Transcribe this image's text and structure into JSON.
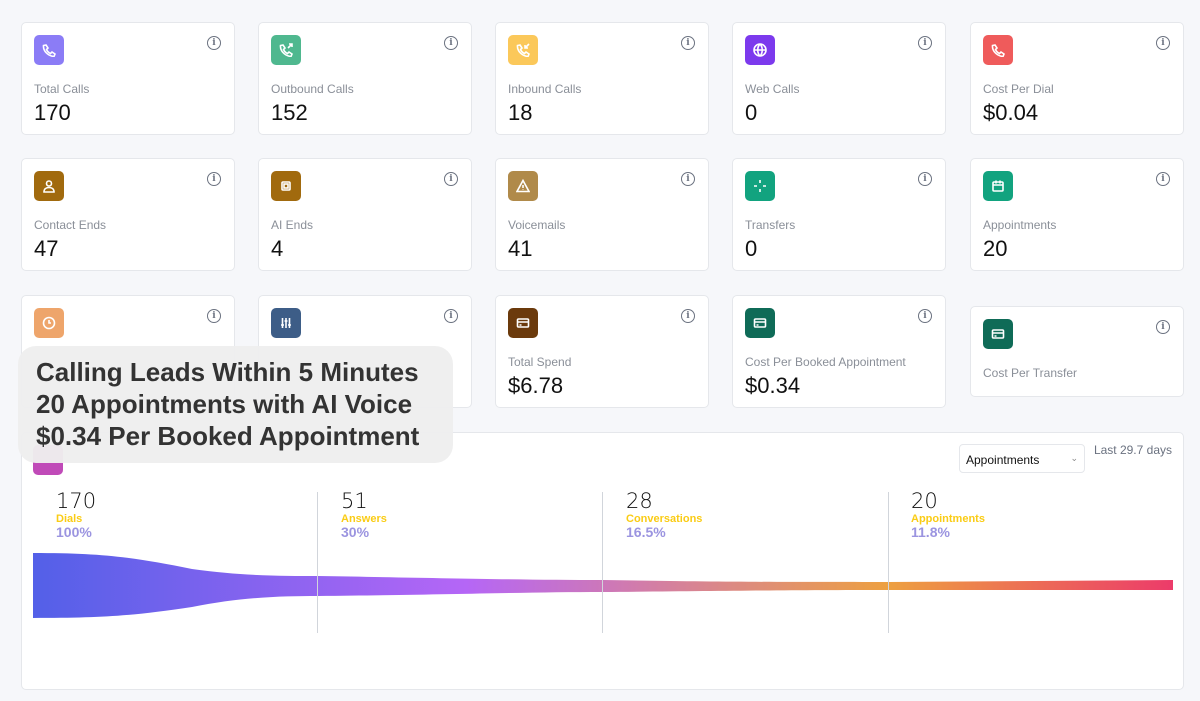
{
  "cards": [
    {
      "label": "Total Calls",
      "value": "170",
      "icon": "phone-icon",
      "color": "#8b7cf6"
    },
    {
      "label": "Outbound Calls",
      "value": "152",
      "icon": "phone-outgoing-icon",
      "color": "#4fb88f"
    },
    {
      "label": "Inbound Calls",
      "value": "18",
      "icon": "phone-incoming-icon",
      "color": "#fbc85a"
    },
    {
      "label": "Web Calls",
      "value": "0",
      "icon": "globe-icon",
      "color": "#7c3aed"
    },
    {
      "label": "Cost Per Dial",
      "value": "$0.04",
      "icon": "phone-icon",
      "color": "#ef5b5b"
    },
    {
      "label": "Contact Ends",
      "value": "47",
      "icon": "user-icon",
      "color": "#a16a0e"
    },
    {
      "label": "AI Ends",
      "value": "4",
      "icon": "chip-icon",
      "color": "#a16a0e"
    },
    {
      "label": "Voicemails",
      "value": "41",
      "icon": "warning-icon",
      "color": "#b08a4a"
    },
    {
      "label": "Transfers",
      "value": "0",
      "icon": "transfer-icon",
      "color": "#12a37f"
    },
    {
      "label": "Appointments",
      "value": "20",
      "icon": "calendar-icon",
      "color": "#12a37f"
    },
    {
      "label": "",
      "value": "",
      "icon": "clock-icon",
      "color": "#eea56b"
    },
    {
      "label": "",
      "value": "",
      "icon": "sliders-icon",
      "color": "#3d5d87"
    },
    {
      "label": "Total Spend",
      "value": "$6.78",
      "icon": "credit-card-icon",
      "color": "#6b3a0c"
    },
    {
      "label": "Cost Per Booked Appointment",
      "value": "$0.34",
      "icon": "credit-card-icon",
      "color": "#0f6b57"
    },
    {
      "label": "Cost Per Transfer",
      "value": "",
      "icon": "credit-card-icon",
      "color": "#0f6b57"
    }
  ],
  "panel": {
    "select": "Appointments",
    "range": "Last 29.7 days"
  },
  "chart_data": {
    "type": "funnel",
    "stages": [
      {
        "value": "170",
        "label": "Dials",
        "pct": "100%"
      },
      {
        "value": "51",
        "label": "Answers",
        "pct": "30%"
      },
      {
        "value": "28",
        "label": "Conversations",
        "pct": "16.5%"
      },
      {
        "value": "20",
        "label": "Appointments",
        "pct": "11.8%"
      }
    ]
  },
  "overlay": [
    "Calling Leads Within 5 Minutes",
    "20 Appointments with AI Voice",
    "$0.34 Per Booked Appointment"
  ]
}
